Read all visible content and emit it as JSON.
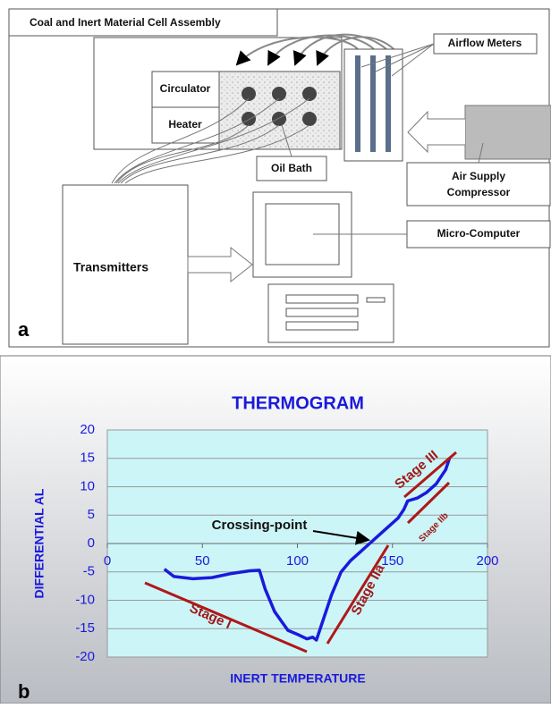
{
  "diagram": {
    "title": "Coal and Inert Material Cell Assembly",
    "airflow_meters": "Airflow Meters",
    "circulator": "Circulator",
    "heater": "Heater",
    "oil_bath": "Oil Bath",
    "compressor": [
      "Air Supply",
      "Compressor"
    ],
    "micro_computer": "Micro-Computer",
    "transmitters": "Transmitters",
    "panel_label": "a"
  },
  "chart_data": {
    "type": "line",
    "panel_label": "b",
    "title": "THERMOGRAM",
    "xlabel": "INERT TEMPERATURE",
    "ylabel": "DIFFERENTIAL AL",
    "annotations": [
      "Crossing-point",
      "Stage I",
      "Stage IIa",
      "Stage IIb",
      "Stage III"
    ],
    "x": [
      30,
      35,
      45,
      55,
      65,
      75,
      80,
      83,
      88,
      95,
      100,
      105,
      108,
      110,
      113,
      118,
      123,
      128,
      133,
      138,
      143,
      148,
      153,
      156,
      158,
      163,
      168,
      173,
      178,
      180
    ],
    "series": [
      {
        "color": "#1a1adc",
        "values": [
          -4.5,
          -5.8,
          -6.2,
          -6,
          -5.3,
          -4.8,
          -4.7,
          -8,
          -12,
          -15.3,
          -16,
          -16.8,
          -16.5,
          -17,
          -14,
          -9,
          -5,
          -3,
          -1.5,
          0,
          1.5,
          3,
          4.5,
          6,
          7.5,
          8,
          9,
          10.5,
          13,
          15
        ]
      }
    ],
    "xlim": [
      0,
      200
    ],
    "xticks": [
      0,
      50,
      100,
      150,
      200
    ],
    "ylim": [
      -20,
      20
    ],
    "yticks": [
      -20,
      -15,
      -10,
      -5,
      0,
      5,
      10,
      15,
      20
    ],
    "grid": true
  }
}
